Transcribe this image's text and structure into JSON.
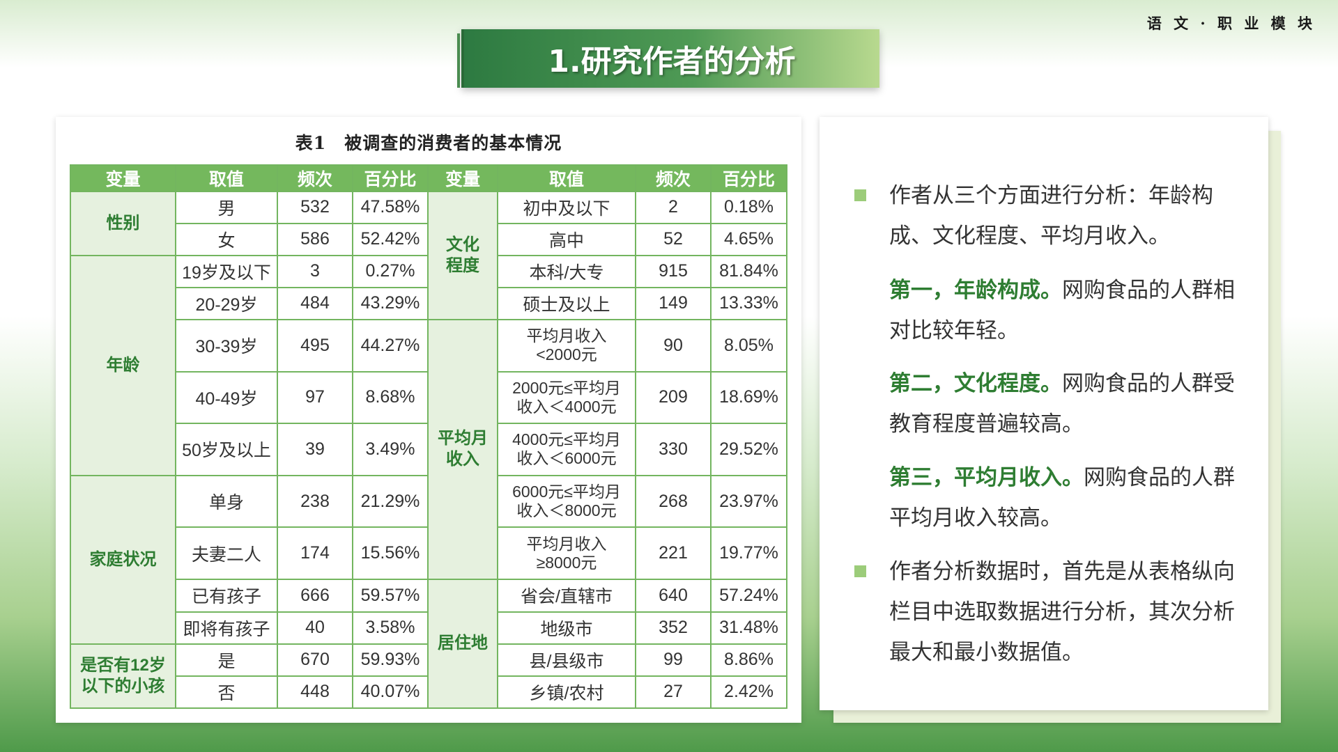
{
  "header": {
    "corner_label": "语 文 · 职 业 模 块",
    "title": "1.研究作者的分析"
  },
  "table": {
    "caption": "表1　被调查的消费者的基本情况",
    "headers": [
      "变量",
      "取值",
      "频次",
      "百分比",
      "变量",
      "取值",
      "频次",
      "百分比"
    ],
    "left_groups": [
      "性别",
      "年龄",
      "家庭状况",
      "是否有12岁以下的小孩"
    ],
    "right_groups": [
      "文化程度",
      "平均月收入",
      "居住地"
    ],
    "rows": [
      {
        "lv": "男",
        "lf": "532",
        "lp": "47.58%",
        "rv": "初中及以下",
        "rf": "2",
        "rp": "0.18%"
      },
      {
        "lv": "女",
        "lf": "586",
        "lp": "52.42%",
        "rv": "高中",
        "rf": "52",
        "rp": "4.65%"
      },
      {
        "lv": "19岁及以下",
        "lf": "3",
        "lp": "0.27%",
        "rv": "本科/大专",
        "rf": "915",
        "rp": "81.84%"
      },
      {
        "lv": "20-29岁",
        "lf": "484",
        "lp": "43.29%",
        "rv": "硕士及以上",
        "rf": "149",
        "rp": "13.33%"
      },
      {
        "lv": "30-39岁",
        "lf": "495",
        "lp": "44.27%",
        "rv": "平均月收入<2000元",
        "rf": "90",
        "rp": "8.05%"
      },
      {
        "lv": "40-49岁",
        "lf": "97",
        "lp": "8.68%",
        "rv": "2000元≤平均月收入＜4000元",
        "rf": "209",
        "rp": "18.69%"
      },
      {
        "lv": "50岁及以上",
        "lf": "39",
        "lp": "3.49%",
        "rv": "4000元≤平均月收入＜6000元",
        "rf": "330",
        "rp": "29.52%"
      },
      {
        "lv": "单身",
        "lf": "238",
        "lp": "21.29%",
        "rv": "6000元≤平均月收入＜8000元",
        "rf": "268",
        "rp": "23.97%"
      },
      {
        "lv": "夫妻二人",
        "lf": "174",
        "lp": "15.56%",
        "rv": "平均月收入≥8000元",
        "rf": "221",
        "rp": "19.77%"
      },
      {
        "lv": "已有孩子",
        "lf": "666",
        "lp": "59.57%",
        "rv": "省会/直辖市",
        "rf": "640",
        "rp": "57.24%"
      },
      {
        "lv": "即将有孩子",
        "lf": "40",
        "lp": "3.58%",
        "rv": "地级市",
        "rf": "352",
        "rp": "31.48%"
      },
      {
        "lv": "是",
        "lf": "670",
        "lp": "59.93%",
        "rv": "县/县级市",
        "rf": "99",
        "rp": "8.86%"
      },
      {
        "lv": "否",
        "lf": "448",
        "lp": "40.07%",
        "rv": "乡镇/农村",
        "rf": "27",
        "rp": "2.42%"
      }
    ]
  },
  "analysis": {
    "bullet1": "作者从三个方面进行分析：年龄构成、文化程度、平均月收入。",
    "p1_hl": "第一，年龄构成。",
    "p1_rest": "网购食品的人群相对比较年轻。",
    "p2_hl": "第二，文化程度。",
    "p2_rest": "网购食品的人群受教育程度普遍较高。",
    "p3_hl": "第三，平均月收入。",
    "p3_rest": "网购食品的人群平均月收入较高。",
    "bullet2": "作者分析数据时，首先是从表格纵向栏目中选取数据进行分析，其次分析最大和最小数据值。"
  }
}
